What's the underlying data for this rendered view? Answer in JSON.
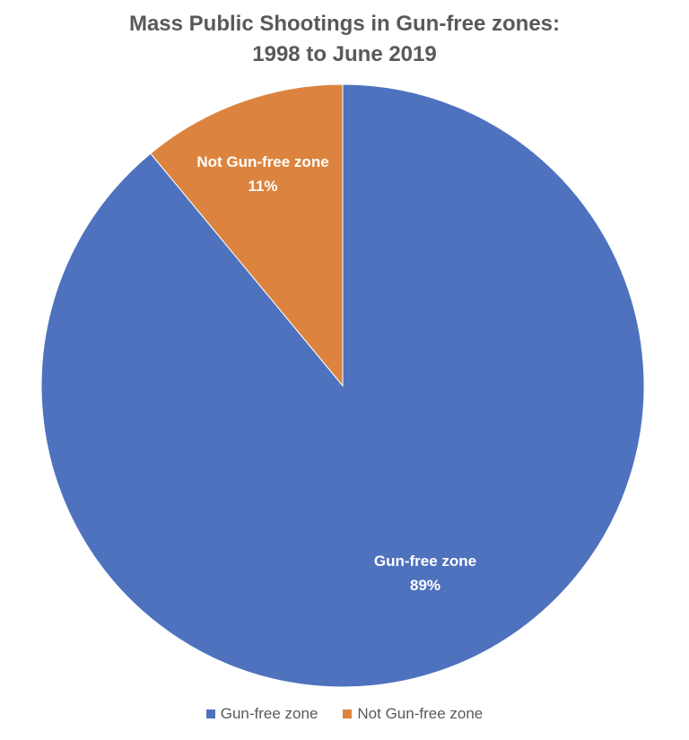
{
  "chart_data": {
    "type": "pie",
    "title": "Mass Public Shootings in Gun-free zones:",
    "subtitle": "1998 to June 2019",
    "legend_position": "bottom",
    "slices": [
      {
        "name": "Gun-free zone",
        "value": 89,
        "label": "89%",
        "color": "#4e72be"
      },
      {
        "name": "Not Gun-free zone",
        "value": 11,
        "label": "11%",
        "color": "#dc843f"
      }
    ]
  }
}
